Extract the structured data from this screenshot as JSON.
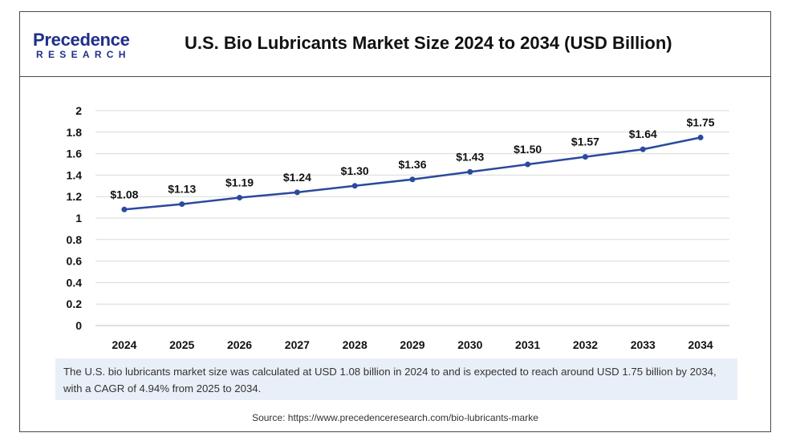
{
  "header": {
    "logo_word": "Precedence",
    "logo_sub": "RESEARCH",
    "title": "U.S. Bio Lubricants Market Size 2024 to 2034 (USD Billion)"
  },
  "note": {
    "text": "The U.S. bio lubricants market size was calculated at USD 1.08 billion in 2024 to and is expected to reach around USD 1.75 billion by 2034, with a CAGR of 4.94% from 2025 to 2034."
  },
  "source": {
    "text": "Source: https://www.precedenceresearch.com/bio-lubricants-marke"
  },
  "colors": {
    "line": "#2b4a9e",
    "grid": "#d9d9d9",
    "note_bg": "#e9eff8",
    "brand": "#1f2f8a"
  },
  "chart_data": {
    "type": "line",
    "title": "U.S. Bio Lubricants Market Size 2024 to 2034 (USD Billion)",
    "categories": [
      "2024",
      "2025",
      "2026",
      "2027",
      "2028",
      "2029",
      "2030",
      "2031",
      "2032",
      "2033",
      "2034"
    ],
    "values": [
      1.08,
      1.13,
      1.19,
      1.24,
      1.3,
      1.36,
      1.43,
      1.5,
      1.57,
      1.64,
      1.75
    ],
    "data_labels": [
      "$1.08",
      "$1.13",
      "$1.19",
      "$1.24",
      "$1.30",
      "$1.36",
      "$1.43",
      "$1.50",
      "$1.57",
      "$1.64",
      "$1.75"
    ],
    "yticks": [
      "0",
      "0.2",
      "0.4",
      "0.6",
      "0.8",
      "1",
      "1.2",
      "1.4",
      "1.6",
      "1.8",
      "2"
    ],
    "ylim": [
      0,
      2
    ],
    "grid": true,
    "legend": "none"
  }
}
